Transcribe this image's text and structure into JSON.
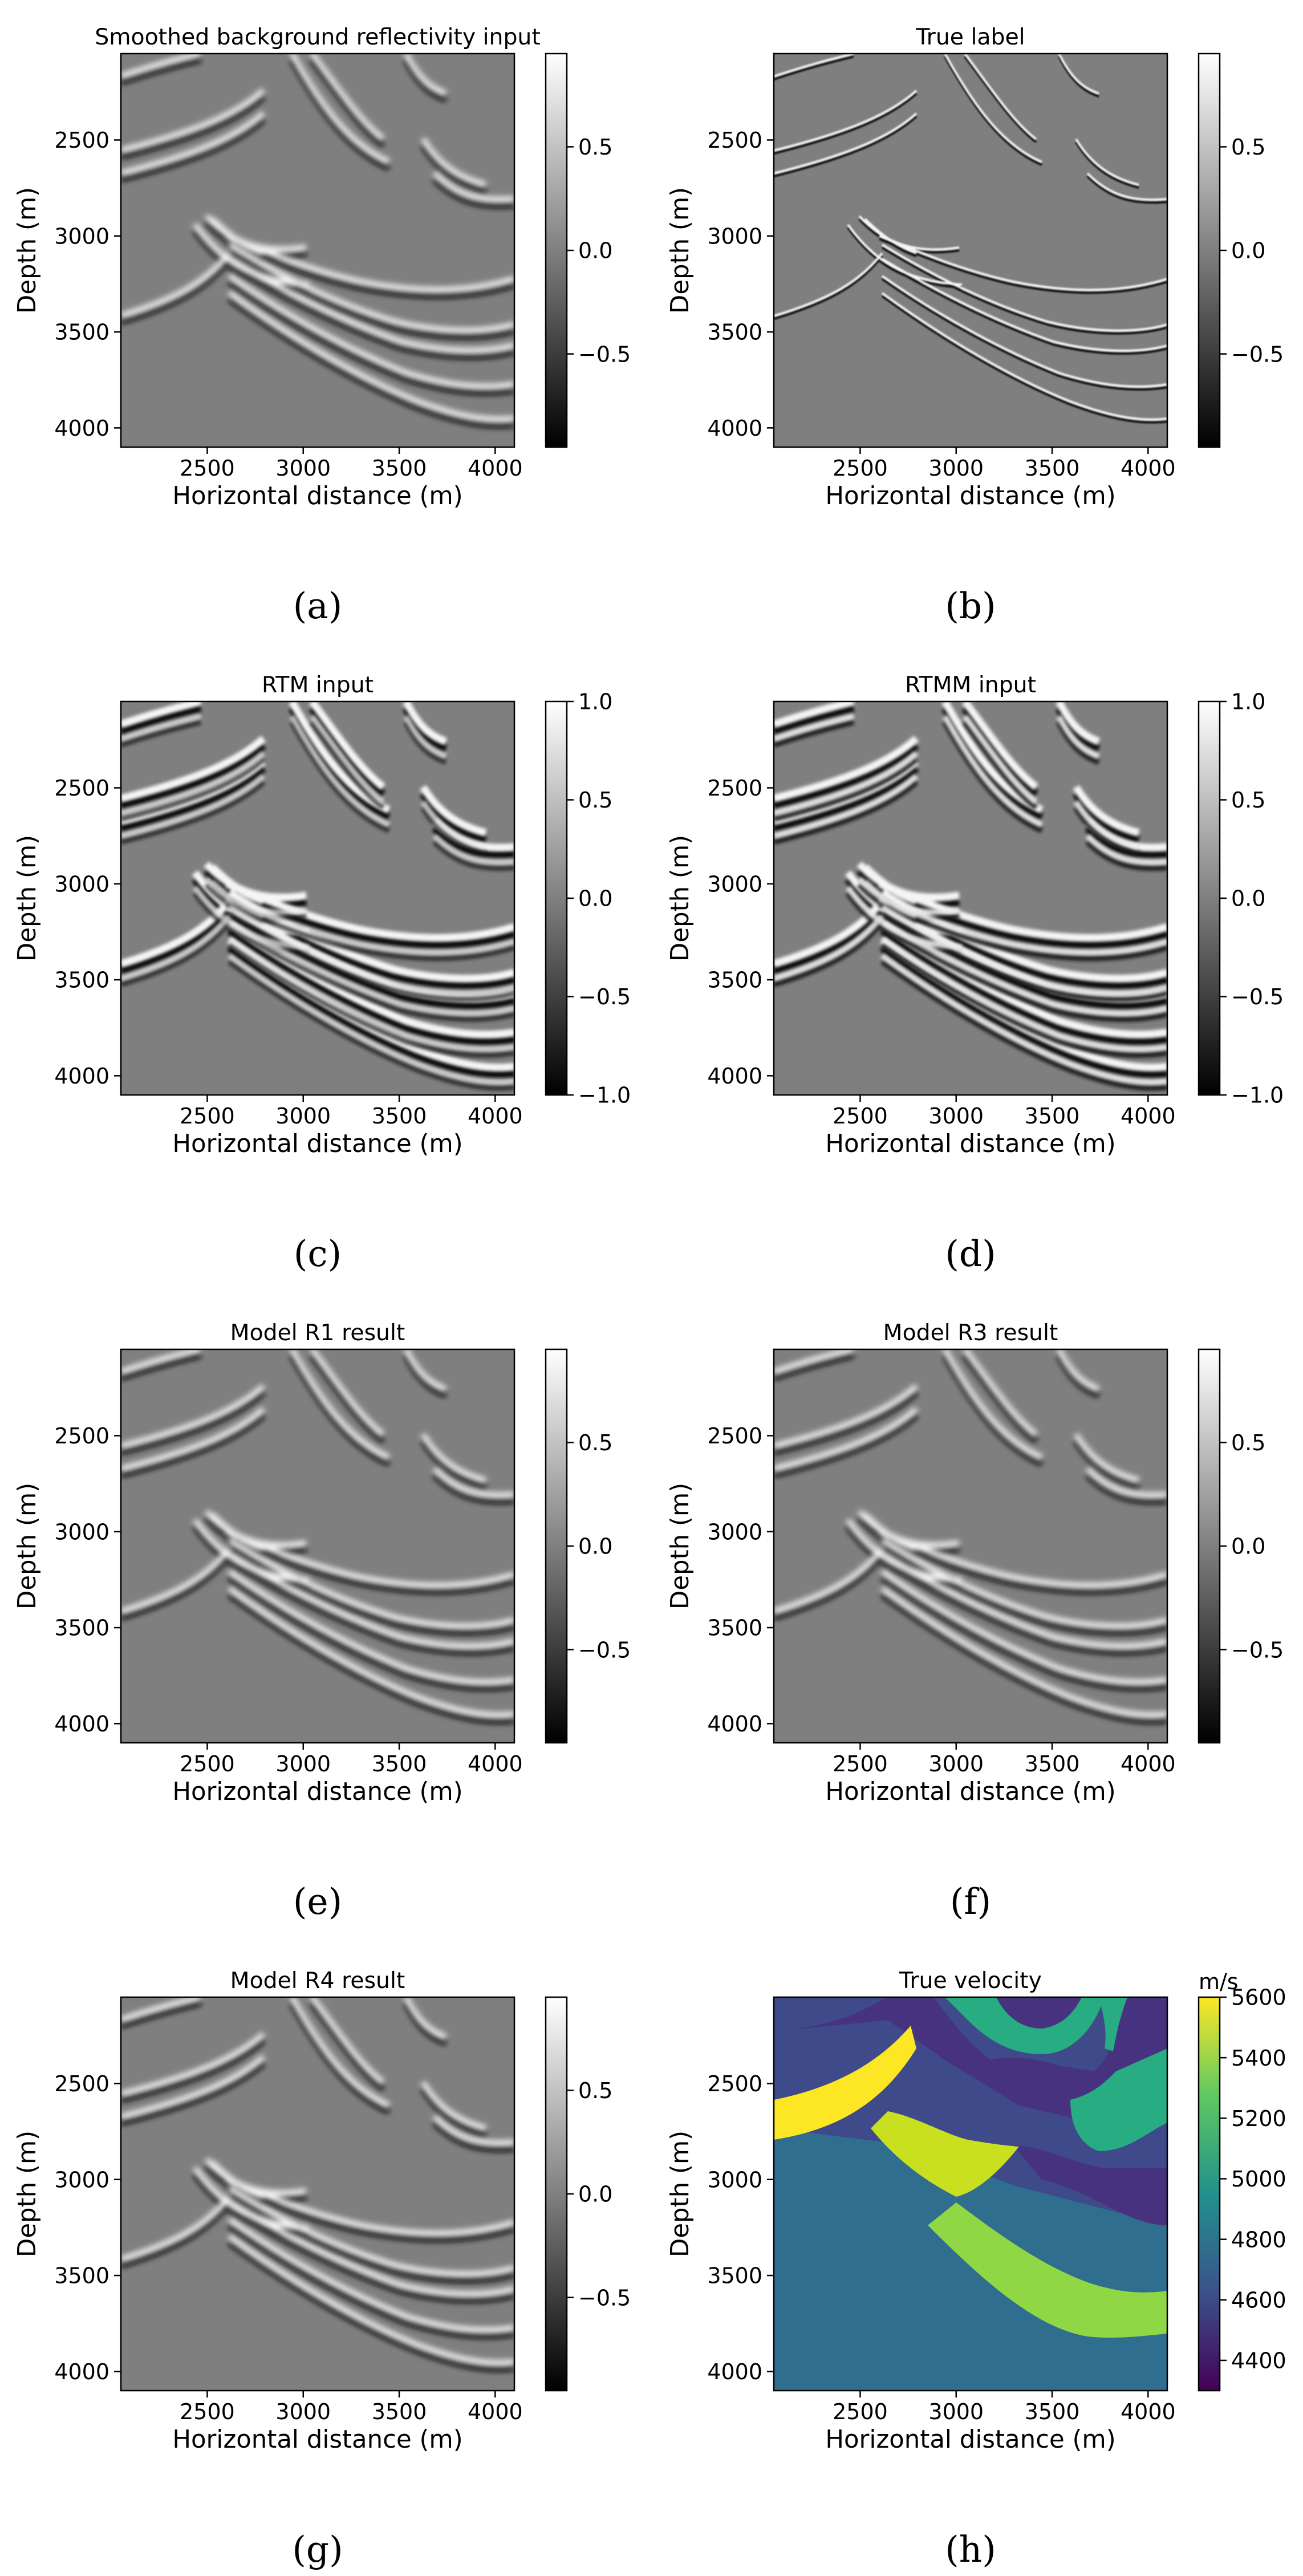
{
  "x_ticks": [
    "2500",
    "3000",
    "3500",
    "4000"
  ],
  "y_ticks": [
    "2500",
    "3000",
    "3500",
    "4000"
  ],
  "xlabel": "Horizontal distance (m)",
  "ylabel": "Depth (m)",
  "colors": {
    "gray_low": "#000000",
    "gray_high": "#ffffff",
    "viridis": [
      "#440154",
      "#3b528b",
      "#21918c",
      "#5ec962",
      "#fde725"
    ]
  },
  "chart_data": [
    {
      "type": "heatmap",
      "title": "Smoothed background reflectivity input",
      "caption": "(a)",
      "xlabel": "Horizontal distance (m)",
      "ylabel": "Depth (m)",
      "xlim": [
        2050,
        4100
      ],
      "ylim": [
        4100,
        2050
      ],
      "colormap": "gray",
      "colorbar": {
        "range": [
          -0.95,
          0.95
        ],
        "ticks": [
          "0.5",
          "0.0",
          "−0.5"
        ],
        "label": ""
      }
    },
    {
      "type": "heatmap",
      "title": "True label",
      "caption": "(b)",
      "xlabel": "Horizontal distance (m)",
      "ylabel": "Depth (m)",
      "xlim": [
        2050,
        4100
      ],
      "ylim": [
        4100,
        2050
      ],
      "colormap": "gray",
      "colorbar": {
        "range": [
          -0.95,
          0.95
        ],
        "ticks": [
          "0.5",
          "0.0",
          "−0.5"
        ],
        "label": ""
      }
    },
    {
      "type": "heatmap",
      "title": "RTM input",
      "caption": "(c)",
      "xlabel": "Horizontal distance (m)",
      "ylabel": "Depth (m)",
      "xlim": [
        2050,
        4100
      ],
      "ylim": [
        4100,
        2050
      ],
      "colormap": "gray",
      "colorbar": {
        "range": [
          -1.0,
          1.0
        ],
        "ticks": [
          "1.0",
          "0.5",
          "0.0",
          "−0.5",
          "−1.0"
        ],
        "label": ""
      }
    },
    {
      "type": "heatmap",
      "title": "RTMM input",
      "caption": "(d)",
      "xlabel": "Horizontal distance (m)",
      "ylabel": "Depth (m)",
      "xlim": [
        2050,
        4100
      ],
      "ylim": [
        4100,
        2050
      ],
      "colormap": "gray",
      "colorbar": {
        "range": [
          -1.0,
          1.0
        ],
        "ticks": [
          "1.0",
          "0.5",
          "0.0",
          "−0.5",
          "−1.0"
        ],
        "label": ""
      }
    },
    {
      "type": "heatmap",
      "title": "Model R1 result",
      "caption": "(e)",
      "xlabel": "Horizontal distance (m)",
      "ylabel": "Depth (m)",
      "xlim": [
        2050,
        4100
      ],
      "ylim": [
        4100,
        2050
      ],
      "colormap": "gray",
      "colorbar": {
        "range": [
          -0.95,
          0.95
        ],
        "ticks": [
          "0.5",
          "0.0",
          "−0.5"
        ],
        "label": ""
      }
    },
    {
      "type": "heatmap",
      "title": "Model R3 result",
      "caption": "(f)",
      "xlabel": "Horizontal distance (m)",
      "ylabel": "Depth (m)",
      "xlim": [
        2050,
        4100
      ],
      "ylim": [
        4100,
        2050
      ],
      "colormap": "gray",
      "colorbar": {
        "range": [
          -0.95,
          0.95
        ],
        "ticks": [
          "0.5",
          "0.0",
          "−0.5"
        ],
        "label": ""
      }
    },
    {
      "type": "heatmap",
      "title": "Model R4 result",
      "caption": "(g)",
      "xlabel": "Horizontal distance (m)",
      "ylabel": "Depth (m)",
      "xlim": [
        2050,
        4100
      ],
      "ylim": [
        4100,
        2050
      ],
      "colormap": "gray",
      "colorbar": {
        "range": [
          -0.95,
          0.95
        ],
        "ticks": [
          "0.5",
          "0.0",
          "−0.5"
        ],
        "label": ""
      }
    },
    {
      "type": "heatmap",
      "title": "True velocity",
      "caption": "(h)",
      "xlabel": "Horizontal distance (m)",
      "ylabel": "Depth (m)",
      "xlim": [
        2050,
        4100
      ],
      "ylim": [
        4100,
        2050
      ],
      "colormap": "viridis",
      "colorbar": {
        "range": [
          4300,
          5600
        ],
        "ticks": [
          "5600",
          "5400",
          "5200",
          "5000",
          "4800",
          "4600",
          "4400"
        ],
        "label": "m/s"
      }
    }
  ]
}
